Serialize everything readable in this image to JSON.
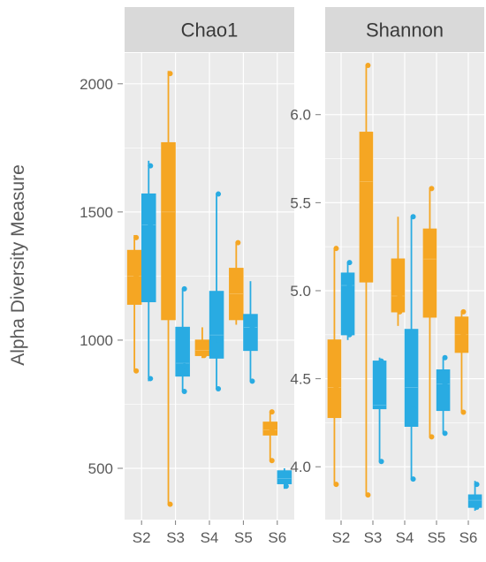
{
  "colors": {
    "group_a": "#f5a623",
    "group_b": "#29abe2",
    "panel_bg": "#ebebeb",
    "strip_bg": "#d9d9d9",
    "grid": "#ffffff",
    "text": "#595959"
  },
  "chart_data": {
    "type": "box",
    "ylabel": "Alpha Diversity Measure",
    "xlabel": "",
    "categories": [
      "S2",
      "S3",
      "S4",
      "S5",
      "S6"
    ],
    "series_colors": [
      "#f5a623",
      "#29abe2"
    ],
    "grid": true,
    "panels": [
      {
        "title": "Chao1",
        "ylim": [
          300,
          2120
        ],
        "yticks": [
          500,
          1000,
          1500,
          2000
        ],
        "boxes": [
          {
            "category": "S2",
            "group": 0,
            "min": 880,
            "q1": 1140,
            "median": 1250,
            "q3": 1350,
            "max": 1410,
            "points": [
              880,
              1250,
              1400
            ]
          },
          {
            "category": "S2",
            "group": 1,
            "min": 840,
            "q1": 1150,
            "median": 1450,
            "q3": 1570,
            "max": 1700,
            "points": [
              850,
              1450,
              1680
            ]
          },
          {
            "category": "S3",
            "group": 0,
            "min": 360,
            "q1": 1080,
            "median": 1500,
            "q3": 1770,
            "max": 2050,
            "points": [
              360,
              1310,
              1680,
              2040
            ]
          },
          {
            "category": "S3",
            "group": 1,
            "min": 800,
            "q1": 860,
            "median": 910,
            "q3": 1050,
            "max": 1200,
            "points": [
              800,
              900,
              1200
            ]
          },
          {
            "category": "S4",
            "group": 0,
            "min": 930,
            "q1": 940,
            "median": 960,
            "q3": 1000,
            "max": 1050,
            "points": [
              940,
              980
            ]
          },
          {
            "category": "S4",
            "group": 1,
            "min": 810,
            "q1": 930,
            "median": 1020,
            "q3": 1190,
            "max": 1570,
            "points": [
              810,
              1000,
              1570
            ]
          },
          {
            "category": "S5",
            "group": 0,
            "min": 1060,
            "q1": 1080,
            "median": 1180,
            "q3": 1280,
            "max": 1380,
            "points": [
              1100,
              1230,
              1380
            ]
          },
          {
            "category": "S5",
            "group": 1,
            "min": 840,
            "q1": 960,
            "median": 1050,
            "q3": 1100,
            "max": 1230,
            "points": [
              840,
              1050
            ]
          },
          {
            "category": "S6",
            "group": 0,
            "min": 530,
            "q1": 630,
            "median": 650,
            "q3": 680,
            "max": 720,
            "points": [
              530,
              650,
              720
            ]
          },
          {
            "category": "S6",
            "group": 1,
            "min": 420,
            "q1": 440,
            "median": 460,
            "q3": 490,
            "max": 500,
            "points": [
              430,
              480
            ]
          }
        ]
      },
      {
        "title": "Shannon",
        "ylim": [
          3.7,
          6.35
        ],
        "yticks": [
          4.0,
          4.5,
          5.0,
          5.5,
          6.0
        ],
        "ytick_labels": [
          "4.0",
          "4.5",
          "5.0",
          "5.5",
          "6.0"
        ],
        "boxes": [
          {
            "category": "S2",
            "group": 0,
            "min": 3.9,
            "q1": 4.28,
            "median": 4.45,
            "q3": 4.72,
            "max": 5.24,
            "points": [
              3.9,
              4.45,
              5.24
            ]
          },
          {
            "category": "S2",
            "group": 1,
            "min": 4.72,
            "q1": 4.75,
            "median": 5.03,
            "q3": 5.1,
            "max": 5.16,
            "points": [
              4.75,
              5.03,
              5.16
            ]
          },
          {
            "category": "S3",
            "group": 0,
            "min": 3.84,
            "q1": 5.05,
            "median": 5.62,
            "q3": 5.9,
            "max": 6.28,
            "points": [
              3.84,
              5.45,
              5.8,
              6.28
            ]
          },
          {
            "category": "S3",
            "group": 1,
            "min": 4.03,
            "q1": 4.33,
            "median": 4.35,
            "q3": 4.6,
            "max": 4.62,
            "points": [
              4.03,
              4.6
            ]
          },
          {
            "category": "S4",
            "group": 0,
            "min": 4.8,
            "q1": 4.88,
            "median": 4.97,
            "q3": 5.18,
            "max": 5.42,
            "points": [
              4.88,
              4.97
            ]
          },
          {
            "category": "S4",
            "group": 1,
            "min": 3.93,
            "q1": 4.23,
            "median": 4.45,
            "q3": 4.78,
            "max": 5.42,
            "points": [
              3.93,
              4.33,
              5.42
            ]
          },
          {
            "category": "S5",
            "group": 0,
            "min": 4.17,
            "q1": 4.85,
            "median": 5.18,
            "q3": 5.35,
            "max": 5.58,
            "points": [
              4.17,
              5.08,
              5.58
            ]
          },
          {
            "category": "S5",
            "group": 1,
            "min": 4.19,
            "q1": 4.32,
            "median": 4.47,
            "q3": 4.55,
            "max": 4.62,
            "points": [
              4.19,
              4.47,
              4.62
            ]
          },
          {
            "category": "S6",
            "group": 0,
            "min": 4.31,
            "q1": 4.65,
            "median": 4.75,
            "q3": 4.85,
            "max": 4.88,
            "points": [
              4.31,
              4.75,
              4.88
            ]
          },
          {
            "category": "S6",
            "group": 1,
            "min": 3.75,
            "q1": 3.77,
            "median": 3.81,
            "q3": 3.84,
            "max": 3.92,
            "points": [
              3.77,
              3.9
            ]
          }
        ]
      }
    ]
  }
}
